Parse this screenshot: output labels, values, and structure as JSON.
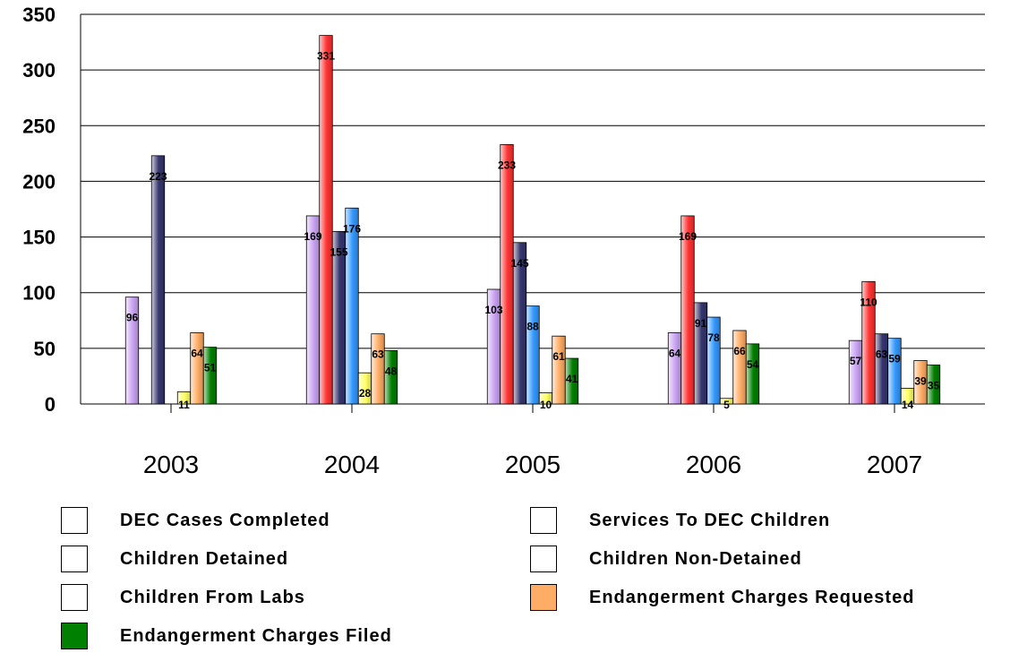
{
  "chart_data": {
    "type": "bar",
    "categories": [
      "2003",
      "2004",
      "2005",
      "2006",
      "2007"
    ],
    "ylim": [
      0,
      350
    ],
    "yticks": [
      0,
      50,
      100,
      150,
      200,
      250,
      300,
      350
    ],
    "grid": true,
    "legend_position": "bottom",
    "series": [
      {
        "name": "DEC Cases Completed",
        "color": "#c9a2f2",
        "values": [
          96,
          169,
          103,
          64,
          57
        ]
      },
      {
        "name": "Services To DEC Children",
        "color": "#ff3333",
        "values": [
          null,
          331,
          233,
          169,
          110
        ]
      },
      {
        "name": "Children Detained",
        "color": "#36366e",
        "values": [
          223,
          155,
          145,
          91,
          63
        ]
      },
      {
        "name": "Children Non-Detained",
        "color": "#3399ff",
        "values": [
          null,
          176,
          88,
          78,
          59
        ]
      },
      {
        "name": "Children From Labs",
        "color": "#ffff66",
        "values": [
          11,
          28,
          10,
          5,
          14
        ]
      },
      {
        "name": "Endangerment Charges Requested",
        "color": "#ffad66",
        "values": [
          64,
          63,
          61,
          66,
          39
        ]
      },
      {
        "name": "Endangerment Charges Filed",
        "color": "#008000",
        "values": [
          51,
          48,
          41,
          54,
          35
        ]
      }
    ]
  },
  "legend": {
    "items": [
      {
        "label": "DEC Cases Completed",
        "swatch": "#ffffff"
      },
      {
        "label": "Services To DEC Children",
        "swatch": "#ffffff"
      },
      {
        "label": "Children Detained",
        "swatch": "#ffffff"
      },
      {
        "label": "Children Non-Detained",
        "swatch": "#ffffff"
      },
      {
        "label": "Children From Labs",
        "swatch": "#ffffff"
      },
      {
        "label": "Endangerment Charges Requested",
        "swatch": "#ffad66"
      },
      {
        "label": "Endangerment Charges Filed",
        "swatch": "#008000"
      }
    ]
  }
}
